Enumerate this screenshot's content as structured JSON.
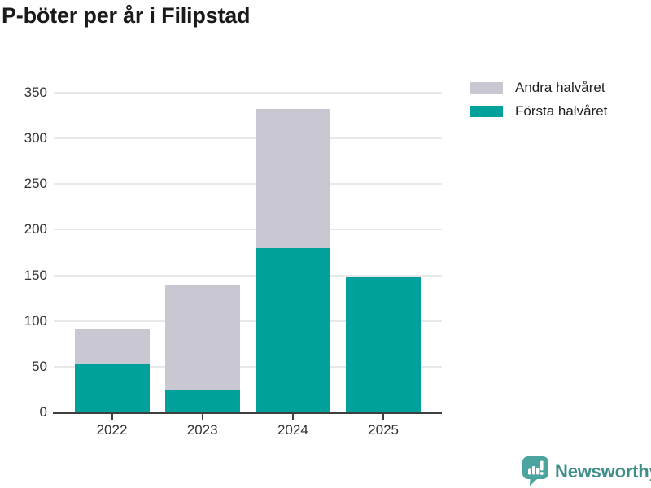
{
  "chart_data": {
    "type": "bar",
    "stacked": true,
    "title": "P-böter per år i Filipstad",
    "categories": [
      "2022",
      "2023",
      "2024",
      "2025"
    ],
    "series": [
      {
        "name": "Första halvåret",
        "color": "#00a19b",
        "values": [
          53,
          24,
          180,
          148
        ]
      },
      {
        "name": "Andra halvåret",
        "color": "#c9c7d1",
        "values": [
          39,
          115,
          152,
          0
        ]
      }
    ],
    "stack_totals": [
      92,
      139,
      332,
      148
    ],
    "xlabel": "",
    "ylabel": "",
    "ylim": [
      0,
      350
    ],
    "yticks": [
      0,
      50,
      100,
      150,
      200,
      250,
      300,
      350
    ],
    "grid": true,
    "legend_position": "top-right",
    "legend": [
      {
        "label": "Andra halvåret",
        "color": "#c9c7d1"
      },
      {
        "label": "Första halvåret",
        "color": "#00a19b"
      }
    ]
  },
  "footer": {
    "brand": "Newsworthy"
  },
  "colors": {
    "title": "#1a1a1a",
    "axis": "#3f3f3f",
    "grid": "#e8e8e8",
    "tick_label": "#333333",
    "logo_icon": "#4ba49f",
    "logo_text": "#3e8e8a",
    "background": "#ffffff"
  }
}
